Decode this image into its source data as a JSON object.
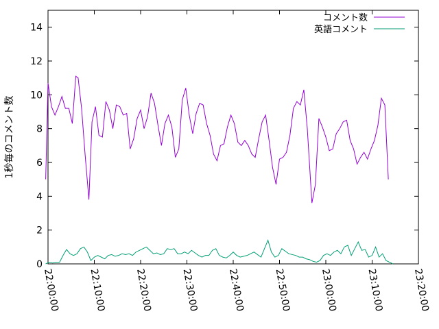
{
  "chart_data": {
    "type": "line",
    "ylabel": "1秒毎のコメント数",
    "ylim": [
      0,
      15
    ],
    "yticks": [
      0,
      2,
      4,
      6,
      8,
      10,
      12,
      14
    ],
    "xlim": [
      "22:00:00",
      "23:20:00"
    ],
    "xticks": [
      "22:00:00",
      "22:10:00",
      "22:20:00",
      "22:30:00",
      "22:40:00",
      "22:50:00",
      "23:00:00",
      "23:10:00",
      "23:20:00"
    ],
    "legend_position": "top-right",
    "grid": false,
    "series": [
      {
        "name": "コメント数",
        "color": "#9400d3",
        "points": [
          [
            "21:59:30",
            5.0
          ],
          [
            "22:00:00",
            10.7
          ],
          [
            "22:00:45",
            9.3
          ],
          [
            "22:01:30",
            8.8
          ],
          [
            "22:02:15",
            9.3
          ],
          [
            "22:03:00",
            9.9
          ],
          [
            "22:03:45",
            9.2
          ],
          [
            "22:04:30",
            9.2
          ],
          [
            "22:05:15",
            8.3
          ],
          [
            "22:06:00",
            11.1
          ],
          [
            "22:06:30",
            11.0
          ],
          [
            "22:07:15",
            9.2
          ],
          [
            "22:08:00",
            6.5
          ],
          [
            "22:08:50",
            3.8
          ],
          [
            "22:09:30",
            8.4
          ],
          [
            "22:10:15",
            9.3
          ],
          [
            "22:11:00",
            7.6
          ],
          [
            "22:11:45",
            7.5
          ],
          [
            "22:12:30",
            9.6
          ],
          [
            "22:13:15",
            9.1
          ],
          [
            "22:14:00",
            8.0
          ],
          [
            "22:14:45",
            9.4
          ],
          [
            "22:15:30",
            9.3
          ],
          [
            "22:16:15",
            8.8
          ],
          [
            "22:17:00",
            8.9
          ],
          [
            "22:17:45",
            6.8
          ],
          [
            "22:18:30",
            7.4
          ],
          [
            "22:19:15",
            8.6
          ],
          [
            "22:20:00",
            9.1
          ],
          [
            "22:20:45",
            8.0
          ],
          [
            "22:21:30",
            8.7
          ],
          [
            "22:22:15",
            10.1
          ],
          [
            "22:23:00",
            9.5
          ],
          [
            "22:23:45",
            8.2
          ],
          [
            "22:24:30",
            7.0
          ],
          [
            "22:25:15",
            8.3
          ],
          [
            "22:26:00",
            8.8
          ],
          [
            "22:26:45",
            8.1
          ],
          [
            "22:27:30",
            6.3
          ],
          [
            "22:28:15",
            6.8
          ],
          [
            "22:29:00",
            9.7
          ],
          [
            "22:29:45",
            10.4
          ],
          [
            "22:30:30",
            8.8
          ],
          [
            "22:31:15",
            7.7
          ],
          [
            "22:32:00",
            8.9
          ],
          [
            "22:32:45",
            9.5
          ],
          [
            "22:33:30",
            9.4
          ],
          [
            "22:34:15",
            8.3
          ],
          [
            "22:35:00",
            7.6
          ],
          [
            "22:35:45",
            6.5
          ],
          [
            "22:36:30",
            6.1
          ],
          [
            "22:37:15",
            7.0
          ],
          [
            "22:38:00",
            7.1
          ],
          [
            "22:38:45",
            8.1
          ],
          [
            "22:39:30",
            8.8
          ],
          [
            "22:40:15",
            8.3
          ],
          [
            "22:41:00",
            7.2
          ],
          [
            "22:41:45",
            7.0
          ],
          [
            "22:42:30",
            7.3
          ],
          [
            "22:43:15",
            7.0
          ],
          [
            "22:44:00",
            6.5
          ],
          [
            "22:44:45",
            6.3
          ],
          [
            "22:45:30",
            7.4
          ],
          [
            "22:46:15",
            8.4
          ],
          [
            "22:47:00",
            8.8
          ],
          [
            "22:47:45",
            7.3
          ],
          [
            "22:48:30",
            5.7
          ],
          [
            "22:49:15",
            4.7
          ],
          [
            "22:50:00",
            6.2
          ],
          [
            "22:50:45",
            6.3
          ],
          [
            "22:51:30",
            6.6
          ],
          [
            "22:52:15",
            7.6
          ],
          [
            "22:53:00",
            9.2
          ],
          [
            "22:53:45",
            9.6
          ],
          [
            "22:54:30",
            9.4
          ],
          [
            "22:55:15",
            10.3
          ],
          [
            "22:56:00",
            8.0
          ],
          [
            "22:57:00",
            3.6
          ],
          [
            "22:57:45",
            4.7
          ],
          [
            "22:58:30",
            8.6
          ],
          [
            "22:59:15",
            8.1
          ],
          [
            "23:00:00",
            7.5
          ],
          [
            "23:00:45",
            6.7
          ],
          [
            "23:01:30",
            6.8
          ],
          [
            "23:02:15",
            7.7
          ],
          [
            "23:03:00",
            8.0
          ],
          [
            "23:03:45",
            8.4
          ],
          [
            "23:04:30",
            8.5
          ],
          [
            "23:05:15",
            7.3
          ],
          [
            "23:06:00",
            6.8
          ],
          [
            "23:06:45",
            5.9
          ],
          [
            "23:07:30",
            6.3
          ],
          [
            "23:08:15",
            6.6
          ],
          [
            "23:09:00",
            6.2
          ],
          [
            "23:09:45",
            6.8
          ],
          [
            "23:10:30",
            7.3
          ],
          [
            "23:11:15",
            8.2
          ],
          [
            "23:12:00",
            9.8
          ],
          [
            "23:12:45",
            9.4
          ],
          [
            "23:13:30",
            5.0
          ]
        ]
      },
      {
        "name": "英語コメント",
        "color": "#009e73",
        "points": [
          [
            "21:59:30",
            0.0
          ],
          [
            "22:00:15",
            0.1
          ],
          [
            "22:01:00",
            0.05
          ],
          [
            "22:01:45",
            0.1
          ],
          [
            "22:02:30",
            0.1
          ],
          [
            "22:03:15",
            0.5
          ],
          [
            "22:04:00",
            0.85
          ],
          [
            "22:04:45",
            0.6
          ],
          [
            "22:05:30",
            0.5
          ],
          [
            "22:06:15",
            0.6
          ],
          [
            "22:07:00",
            0.9
          ],
          [
            "22:07:45",
            1.0
          ],
          [
            "22:08:30",
            0.7
          ],
          [
            "22:09:15",
            0.2
          ],
          [
            "22:10:00",
            0.4
          ],
          [
            "22:10:45",
            0.5
          ],
          [
            "22:11:30",
            0.4
          ],
          [
            "22:12:15",
            0.3
          ],
          [
            "22:13:00",
            0.5
          ],
          [
            "22:13:45",
            0.55
          ],
          [
            "22:14:30",
            0.45
          ],
          [
            "22:15:15",
            0.5
          ],
          [
            "22:16:00",
            0.6
          ],
          [
            "22:16:45",
            0.55
          ],
          [
            "22:17:30",
            0.6
          ],
          [
            "22:18:15",
            0.5
          ],
          [
            "22:19:00",
            0.7
          ],
          [
            "22:19:45",
            0.8
          ],
          [
            "22:20:30",
            0.9
          ],
          [
            "22:21:15",
            1.0
          ],
          [
            "22:22:00",
            0.8
          ],
          [
            "22:22:45",
            0.6
          ],
          [
            "22:23:30",
            0.65
          ],
          [
            "22:24:15",
            0.55
          ],
          [
            "22:25:00",
            0.6
          ],
          [
            "22:25:45",
            0.9
          ],
          [
            "22:26:30",
            0.85
          ],
          [
            "22:27:15",
            0.9
          ],
          [
            "22:28:00",
            0.6
          ],
          [
            "22:28:45",
            0.6
          ],
          [
            "22:29:30",
            0.7
          ],
          [
            "22:30:15",
            0.6
          ],
          [
            "22:31:00",
            0.8
          ],
          [
            "22:31:45",
            0.65
          ],
          [
            "22:32:30",
            0.5
          ],
          [
            "22:33:15",
            0.4
          ],
          [
            "22:34:00",
            0.5
          ],
          [
            "22:34:45",
            0.5
          ],
          [
            "22:35:30",
            0.8
          ],
          [
            "22:36:15",
            0.9
          ],
          [
            "22:37:00",
            0.5
          ],
          [
            "22:37:45",
            0.4
          ],
          [
            "22:38:30",
            0.35
          ],
          [
            "22:39:15",
            0.5
          ],
          [
            "22:40:00",
            0.7
          ],
          [
            "22:40:45",
            0.5
          ],
          [
            "22:41:30",
            0.4
          ],
          [
            "22:42:15",
            0.45
          ],
          [
            "22:43:00",
            0.5
          ],
          [
            "22:43:45",
            0.6
          ],
          [
            "22:44:30",
            0.7
          ],
          [
            "22:45:15",
            0.55
          ],
          [
            "22:46:00",
            0.4
          ],
          [
            "22:46:45",
            0.9
          ],
          [
            "22:47:30",
            1.4
          ],
          [
            "22:48:15",
            0.7
          ],
          [
            "22:49:00",
            0.4
          ],
          [
            "22:49:45",
            0.5
          ],
          [
            "22:50:30",
            0.9
          ],
          [
            "22:51:15",
            0.75
          ],
          [
            "22:52:00",
            0.6
          ],
          [
            "22:52:45",
            0.55
          ],
          [
            "22:53:30",
            0.5
          ],
          [
            "22:54:15",
            0.4
          ],
          [
            "22:55:00",
            0.4
          ],
          [
            "22:55:45",
            0.3
          ],
          [
            "22:56:30",
            0.25
          ],
          [
            "22:57:15",
            0.15
          ],
          [
            "22:58:00",
            0.1
          ],
          [
            "22:58:45",
            0.2
          ],
          [
            "22:59:30",
            0.5
          ],
          [
            "23:00:15",
            0.6
          ],
          [
            "23:01:00",
            0.5
          ],
          [
            "23:01:45",
            0.7
          ],
          [
            "23:02:30",
            0.8
          ],
          [
            "23:03:15",
            0.6
          ],
          [
            "23:04:00",
            1.0
          ],
          [
            "23:04:45",
            1.1
          ],
          [
            "23:05:30",
            0.5
          ],
          [
            "23:06:15",
            0.9
          ],
          [
            "23:07:00",
            1.3
          ],
          [
            "23:07:45",
            0.8
          ],
          [
            "23:08:30",
            0.85
          ],
          [
            "23:09:15",
            0.4
          ],
          [
            "23:10:00",
            0.5
          ],
          [
            "23:10:45",
            1.0
          ],
          [
            "23:11:30",
            0.4
          ],
          [
            "23:12:15",
            0.6
          ],
          [
            "23:13:00",
            0.2
          ],
          [
            "23:13:45",
            0.1
          ],
          [
            "23:14:30",
            0.0
          ]
        ]
      }
    ]
  }
}
